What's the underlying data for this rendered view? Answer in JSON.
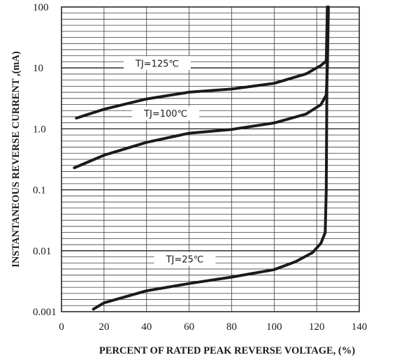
{
  "chart_data": {
    "type": "line",
    "title": "",
    "xlabel": "PERCENT OF RATED PEAK REVERSE VOLTAGE, (%)",
    "ylabel": "INSTANTANEOUS REVERSE CURRENT ,(mA)",
    "xlim": [
      0,
      140
    ],
    "ylim": [
      0.001,
      100
    ],
    "y_scale": "log",
    "grid": true,
    "legend": "none",
    "x_ticks": [
      "0",
      "20",
      "40",
      "60",
      "80",
      "100",
      "120",
      "140"
    ],
    "y_ticks": [
      "0.001",
      "0.01",
      "0.1",
      "1.0",
      "10",
      "100"
    ],
    "line_color": "#1a1a1a",
    "series": [
      {
        "name": "TJ=125℃",
        "x": [
          7,
          20,
          40,
          60,
          80,
          100,
          115,
          122,
          124.5,
          125
        ],
        "y": [
          1.5,
          2.1,
          3.1,
          4.0,
          4.5,
          5.6,
          8.0,
          11.0,
          13.0,
          100
        ]
      },
      {
        "name": "TJ=100℃",
        "x": [
          6,
          20,
          40,
          60,
          80,
          100,
          115,
          122,
          124.5,
          125,
          125.5
        ],
        "y": [
          0.23,
          0.37,
          0.6,
          0.85,
          0.98,
          1.25,
          1.75,
          2.5,
          3.6,
          10,
          100
        ]
      },
      {
        "name": "TJ=25℃",
        "x": [
          15,
          20,
          40,
          60,
          80,
          100,
          110,
          118,
          122,
          124,
          124.5,
          125
        ],
        "y": [
          0.0011,
          0.0014,
          0.0022,
          0.0029,
          0.0037,
          0.0049,
          0.0066,
          0.0093,
          0.0133,
          0.02,
          0.1,
          100
        ]
      }
    ]
  }
}
